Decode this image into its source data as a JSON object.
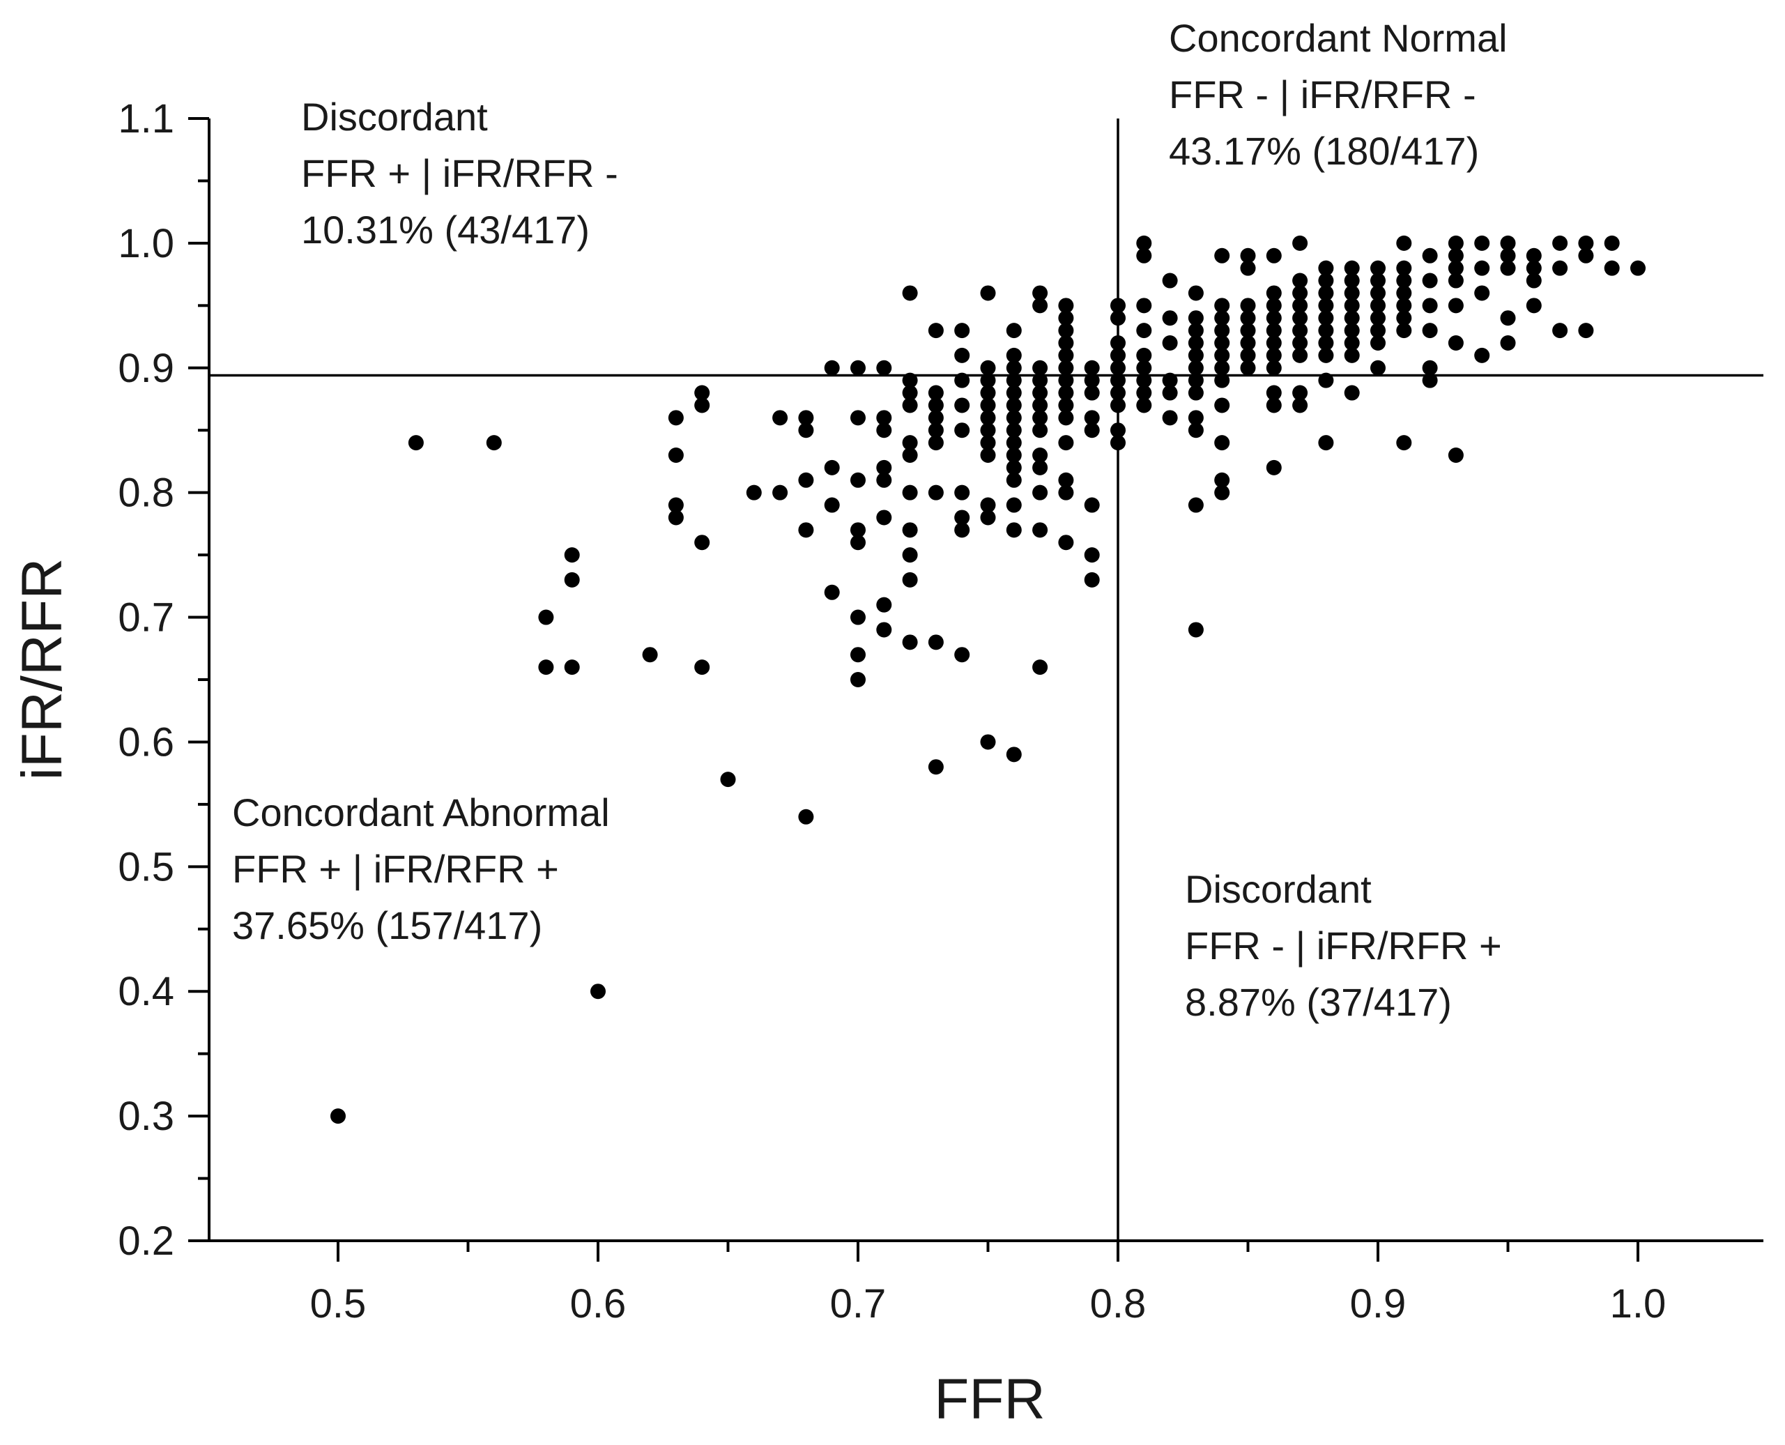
{
  "chart_data": {
    "type": "scatter",
    "title": "",
    "xlabel": "FFR",
    "ylabel": "iFR/RFR",
    "xlim": [
      0.45,
      1.05
    ],
    "ylim": [
      0.2,
      1.1
    ],
    "xticks": [
      0.5,
      0.6,
      0.7,
      0.8,
      0.9,
      1.0
    ],
    "xtick_labels": [
      "0.5",
      "0.6",
      "0.7",
      "0.8",
      "0.9",
      "1.0"
    ],
    "yticks": [
      0.2,
      0.3,
      0.4,
      0.5,
      0.6,
      0.7,
      0.8,
      0.9,
      1.0,
      1.1
    ],
    "ytick_labels": [
      "0.2",
      "0.3",
      "0.4",
      "0.5",
      "0.6",
      "0.7",
      "0.8",
      "0.9",
      "1.0",
      "1.1"
    ],
    "grid": false,
    "reference_lines": {
      "vertical_x": 0.8,
      "horizontal_y": 0.894
    },
    "quadrants": [
      {
        "position": "top-left",
        "lines": [
          "Discordant",
          "FFR + | iFR/RFR -",
          "10.31% (43/417)"
        ]
      },
      {
        "position": "top-right",
        "lines": [
          "Concordant Normal",
          "FFR - | iFR/RFR -",
          "43.17% (180/417)"
        ]
      },
      {
        "position": "bottom-left",
        "lines": [
          "Concordant Abnormal",
          "FFR + | iFR/RFR +",
          "37.65% (157/417)"
        ]
      },
      {
        "position": "bottom-right",
        "lines": [
          "Discordant",
          "FFR - | iFR/RFR +",
          "8.87% (37/417)"
        ]
      }
    ],
    "series": [
      {
        "name": "lesions",
        "points": [
          [
            0.5,
            0.3
          ],
          [
            0.53,
            0.84
          ],
          [
            0.56,
            0.84
          ],
          [
            0.58,
            0.7
          ],
          [
            0.58,
            0.66
          ],
          [
            0.59,
            0.75
          ],
          [
            0.59,
            0.73
          ],
          [
            0.59,
            0.66
          ],
          [
            0.6,
            0.4
          ],
          [
            0.62,
            0.67
          ],
          [
            0.63,
            0.86
          ],
          [
            0.63,
            0.83
          ],
          [
            0.63,
            0.79
          ],
          [
            0.63,
            0.78
          ],
          [
            0.64,
            0.88
          ],
          [
            0.64,
            0.87
          ],
          [
            0.64,
            0.76
          ],
          [
            0.64,
            0.66
          ],
          [
            0.65,
            0.57
          ],
          [
            0.66,
            0.8
          ],
          [
            0.67,
            0.86
          ],
          [
            0.67,
            0.8
          ],
          [
            0.68,
            0.86
          ],
          [
            0.68,
            0.85
          ],
          [
            0.68,
            0.81
          ],
          [
            0.68,
            0.77
          ],
          [
            0.68,
            0.54
          ],
          [
            0.69,
            0.9
          ],
          [
            0.69,
            0.82
          ],
          [
            0.69,
            0.79
          ],
          [
            0.69,
            0.72
          ],
          [
            0.7,
            0.9
          ],
          [
            0.7,
            0.86
          ],
          [
            0.7,
            0.81
          ],
          [
            0.7,
            0.77
          ],
          [
            0.7,
            0.76
          ],
          [
            0.7,
            0.7
          ],
          [
            0.7,
            0.67
          ],
          [
            0.7,
            0.65
          ],
          [
            0.71,
            0.9
          ],
          [
            0.71,
            0.86
          ],
          [
            0.71,
            0.85
          ],
          [
            0.71,
            0.82
          ],
          [
            0.71,
            0.81
          ],
          [
            0.71,
            0.78
          ],
          [
            0.71,
            0.71
          ],
          [
            0.71,
            0.69
          ],
          [
            0.72,
            0.96
          ],
          [
            0.72,
            0.89
          ],
          [
            0.72,
            0.88
          ],
          [
            0.72,
            0.87
          ],
          [
            0.72,
            0.84
          ],
          [
            0.72,
            0.83
          ],
          [
            0.72,
            0.8
          ],
          [
            0.72,
            0.77
          ],
          [
            0.72,
            0.75
          ],
          [
            0.72,
            0.73
          ],
          [
            0.72,
            0.68
          ],
          [
            0.73,
            0.93
          ],
          [
            0.73,
            0.88
          ],
          [
            0.73,
            0.87
          ],
          [
            0.73,
            0.86
          ],
          [
            0.73,
            0.85
          ],
          [
            0.73,
            0.84
          ],
          [
            0.73,
            0.8
          ],
          [
            0.73,
            0.68
          ],
          [
            0.73,
            0.58
          ],
          [
            0.74,
            0.93
          ],
          [
            0.74,
            0.91
          ],
          [
            0.74,
            0.89
          ],
          [
            0.74,
            0.87
          ],
          [
            0.74,
            0.85
          ],
          [
            0.74,
            0.8
          ],
          [
            0.74,
            0.78
          ],
          [
            0.74,
            0.77
          ],
          [
            0.74,
            0.67
          ],
          [
            0.75,
            0.96
          ],
          [
            0.75,
            0.9
          ],
          [
            0.75,
            0.89
          ],
          [
            0.75,
            0.88
          ],
          [
            0.75,
            0.87
          ],
          [
            0.75,
            0.86
          ],
          [
            0.75,
            0.85
          ],
          [
            0.75,
            0.84
          ],
          [
            0.75,
            0.83
          ],
          [
            0.75,
            0.79
          ],
          [
            0.75,
            0.78
          ],
          [
            0.75,
            0.6
          ],
          [
            0.76,
            0.93
          ],
          [
            0.76,
            0.91
          ],
          [
            0.76,
            0.9
          ],
          [
            0.76,
            0.89
          ],
          [
            0.76,
            0.88
          ],
          [
            0.76,
            0.87
          ],
          [
            0.76,
            0.86
          ],
          [
            0.76,
            0.85
          ],
          [
            0.76,
            0.84
          ],
          [
            0.76,
            0.83
          ],
          [
            0.76,
            0.82
          ],
          [
            0.76,
            0.81
          ],
          [
            0.76,
            0.79
          ],
          [
            0.76,
            0.77
          ],
          [
            0.76,
            0.59
          ],
          [
            0.77,
            0.96
          ],
          [
            0.77,
            0.95
          ],
          [
            0.77,
            0.9
          ],
          [
            0.77,
            0.89
          ],
          [
            0.77,
            0.88
          ],
          [
            0.77,
            0.87
          ],
          [
            0.77,
            0.86
          ],
          [
            0.77,
            0.85
          ],
          [
            0.77,
            0.83
          ],
          [
            0.77,
            0.82
          ],
          [
            0.77,
            0.8
          ],
          [
            0.77,
            0.77
          ],
          [
            0.77,
            0.66
          ],
          [
            0.78,
            0.95
          ],
          [
            0.78,
            0.94
          ],
          [
            0.78,
            0.93
          ],
          [
            0.78,
            0.92
          ],
          [
            0.78,
            0.91
          ],
          [
            0.78,
            0.9
          ],
          [
            0.78,
            0.89
          ],
          [
            0.78,
            0.88
          ],
          [
            0.78,
            0.87
          ],
          [
            0.78,
            0.86
          ],
          [
            0.78,
            0.84
          ],
          [
            0.78,
            0.81
          ],
          [
            0.78,
            0.8
          ],
          [
            0.78,
            0.76
          ],
          [
            0.79,
            0.9
          ],
          [
            0.79,
            0.89
          ],
          [
            0.79,
            0.88
          ],
          [
            0.79,
            0.86
          ],
          [
            0.79,
            0.85
          ],
          [
            0.79,
            0.79
          ],
          [
            0.79,
            0.75
          ],
          [
            0.79,
            0.73
          ],
          [
            0.8,
            0.95
          ],
          [
            0.8,
            0.94
          ],
          [
            0.8,
            0.92
          ],
          [
            0.8,
            0.91
          ],
          [
            0.8,
            0.9
          ],
          [
            0.8,
            0.89
          ],
          [
            0.8,
            0.88
          ],
          [
            0.8,
            0.87
          ],
          [
            0.8,
            0.85
          ],
          [
            0.8,
            0.84
          ],
          [
            0.81,
            1.0
          ],
          [
            0.81,
            0.99
          ],
          [
            0.81,
            0.95
          ],
          [
            0.81,
            0.93
          ],
          [
            0.81,
            0.91
          ],
          [
            0.81,
            0.9
          ],
          [
            0.81,
            0.89
          ],
          [
            0.81,
            0.88
          ],
          [
            0.81,
            0.87
          ],
          [
            0.82,
            0.97
          ],
          [
            0.82,
            0.94
          ],
          [
            0.82,
            0.92
          ],
          [
            0.82,
            0.89
          ],
          [
            0.82,
            0.88
          ],
          [
            0.82,
            0.86
          ],
          [
            0.83,
            0.96
          ],
          [
            0.83,
            0.94
          ],
          [
            0.83,
            0.93
          ],
          [
            0.83,
            0.92
          ],
          [
            0.83,
            0.91
          ],
          [
            0.83,
            0.9
          ],
          [
            0.83,
            0.89
          ],
          [
            0.83,
            0.88
          ],
          [
            0.83,
            0.86
          ],
          [
            0.83,
            0.85
          ],
          [
            0.83,
            0.79
          ],
          [
            0.83,
            0.69
          ],
          [
            0.84,
            0.99
          ],
          [
            0.84,
            0.95
          ],
          [
            0.84,
            0.94
          ],
          [
            0.84,
            0.93
          ],
          [
            0.84,
            0.92
          ],
          [
            0.84,
            0.91
          ],
          [
            0.84,
            0.9
          ],
          [
            0.84,
            0.89
          ],
          [
            0.84,
            0.87
          ],
          [
            0.84,
            0.84
          ],
          [
            0.84,
            0.81
          ],
          [
            0.84,
            0.8
          ],
          [
            0.85,
            0.99
          ],
          [
            0.85,
            0.98
          ],
          [
            0.85,
            0.95
          ],
          [
            0.85,
            0.94
          ],
          [
            0.85,
            0.93
          ],
          [
            0.85,
            0.92
          ],
          [
            0.85,
            0.91
          ],
          [
            0.85,
            0.9
          ],
          [
            0.86,
            0.99
          ],
          [
            0.86,
            0.96
          ],
          [
            0.86,
            0.95
          ],
          [
            0.86,
            0.94
          ],
          [
            0.86,
            0.93
          ],
          [
            0.86,
            0.92
          ],
          [
            0.86,
            0.91
          ],
          [
            0.86,
            0.9
          ],
          [
            0.86,
            0.88
          ],
          [
            0.86,
            0.87
          ],
          [
            0.86,
            0.82
          ],
          [
            0.87,
            1.0
          ],
          [
            0.87,
            0.97
          ],
          [
            0.87,
            0.96
          ],
          [
            0.87,
            0.95
          ],
          [
            0.87,
            0.94
          ],
          [
            0.87,
            0.93
          ],
          [
            0.87,
            0.92
          ],
          [
            0.87,
            0.91
          ],
          [
            0.87,
            0.88
          ],
          [
            0.87,
            0.87
          ],
          [
            0.88,
            0.98
          ],
          [
            0.88,
            0.97
          ],
          [
            0.88,
            0.96
          ],
          [
            0.88,
            0.95
          ],
          [
            0.88,
            0.94
          ],
          [
            0.88,
            0.93
          ],
          [
            0.88,
            0.92
          ],
          [
            0.88,
            0.91
          ],
          [
            0.88,
            0.89
          ],
          [
            0.88,
            0.84
          ],
          [
            0.89,
            0.98
          ],
          [
            0.89,
            0.97
          ],
          [
            0.89,
            0.96
          ],
          [
            0.89,
            0.95
          ],
          [
            0.89,
            0.94
          ],
          [
            0.89,
            0.93
          ],
          [
            0.89,
            0.92
          ],
          [
            0.89,
            0.91
          ],
          [
            0.89,
            0.88
          ],
          [
            0.9,
            0.98
          ],
          [
            0.9,
            0.97
          ],
          [
            0.9,
            0.96
          ],
          [
            0.9,
            0.95
          ],
          [
            0.9,
            0.94
          ],
          [
            0.9,
            0.93
          ],
          [
            0.9,
            0.92
          ],
          [
            0.9,
            0.9
          ],
          [
            0.91,
            1.0
          ],
          [
            0.91,
            0.98
          ],
          [
            0.91,
            0.97
          ],
          [
            0.91,
            0.96
          ],
          [
            0.91,
            0.95
          ],
          [
            0.91,
            0.94
          ],
          [
            0.91,
            0.93
          ],
          [
            0.91,
            0.84
          ],
          [
            0.92,
            0.99
          ],
          [
            0.92,
            0.97
          ],
          [
            0.92,
            0.95
          ],
          [
            0.92,
            0.93
          ],
          [
            0.92,
            0.9
          ],
          [
            0.92,
            0.89
          ],
          [
            0.93,
            1.0
          ],
          [
            0.93,
            0.99
          ],
          [
            0.93,
            0.98
          ],
          [
            0.93,
            0.97
          ],
          [
            0.93,
            0.95
          ],
          [
            0.93,
            0.92
          ],
          [
            0.93,
            0.83
          ],
          [
            0.94,
            1.0
          ],
          [
            0.94,
            0.98
          ],
          [
            0.94,
            0.96
          ],
          [
            0.94,
            0.91
          ],
          [
            0.95,
            1.0
          ],
          [
            0.95,
            0.99
          ],
          [
            0.95,
            0.98
          ],
          [
            0.95,
            0.94
          ],
          [
            0.95,
            0.92
          ],
          [
            0.96,
            0.99
          ],
          [
            0.96,
            0.98
          ],
          [
            0.96,
            0.97
          ],
          [
            0.96,
            0.95
          ],
          [
            0.97,
            1.0
          ],
          [
            0.97,
            0.98
          ],
          [
            0.97,
            0.93
          ],
          [
            0.98,
            1.0
          ],
          [
            0.98,
            0.99
          ],
          [
            0.98,
            0.93
          ],
          [
            0.99,
            1.0
          ],
          [
            0.99,
            0.98
          ],
          [
            1.0,
            0.98
          ]
        ]
      }
    ]
  }
}
